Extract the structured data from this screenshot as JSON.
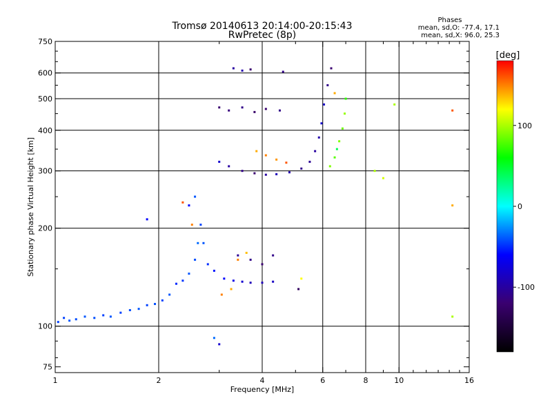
{
  "chart_data": {
    "type": "scatter",
    "title": "Tromsø 20140613 20:14:00-20:15:43",
    "subtitle": "RwPretec (8p)",
    "phases": {
      "heading": "Phases",
      "line_o": "mean, sd,O: -77.4, 17.1",
      "line_x": "mean, sd,X:  96.0, 25.3"
    },
    "xlabel": "Frequency [MHz]",
    "ylabel": "Stationary phase Virtual Height [km]",
    "xscale": "log",
    "yscale": "log",
    "xlim": [
      1,
      16
    ],
    "ylim": [
      72,
      750
    ],
    "x_ticks": [
      1,
      2,
      4,
      6,
      8,
      10,
      16
    ],
    "x_tick_labels": [
      "1",
      "2",
      "4",
      "6",
      "8",
      "10",
      "16"
    ],
    "x_minor_ticks": [
      3,
      5,
      7,
      9,
      11,
      12,
      13,
      14,
      15
    ],
    "y_ticks": [
      75,
      100,
      200,
      300,
      400,
      500,
      600,
      750
    ],
    "y_tick_labels": [
      "75",
      "100",
      "200",
      "300",
      "400",
      "500",
      "600",
      "750"
    ],
    "y_minor_ticks": [
      80,
      90,
      150,
      250,
      350,
      450,
      550,
      650,
      700
    ],
    "grid_x": [
      2,
      4,
      6,
      8,
      10
    ],
    "grid_y": [
      100,
      200,
      300,
      400,
      500,
      600
    ],
    "colorbar": {
      "label": "[deg]",
      "range": [
        -180,
        180
      ],
      "ticks": [
        100,
        0,
        -100
      ],
      "tick_labels": [
        "100",
        "0",
        "-100"
      ],
      "stops": [
        "#000000",
        "#3a0070",
        "#0000ff",
        "#00ffff",
        "#00ff00",
        "#ffff00",
        "#ff0000"
      ]
    },
    "series": [
      {
        "points": [
          [
            1.02,
            103,
            -45
          ],
          [
            1.06,
            106,
            -45
          ],
          [
            1.1,
            104,
            -40
          ],
          [
            1.15,
            105,
            -42
          ],
          [
            1.22,
            107,
            -40
          ],
          [
            1.3,
            106,
            -42
          ],
          [
            1.38,
            108,
            -45
          ],
          [
            1.45,
            107,
            -40
          ],
          [
            1.55,
            110,
            -45
          ],
          [
            1.65,
            112,
            -42
          ],
          [
            1.75,
            113,
            -40
          ],
          [
            1.85,
            116,
            -45
          ],
          [
            1.95,
            117,
            -42
          ],
          [
            2.05,
            120,
            -45
          ],
          [
            2.15,
            125,
            -40
          ],
          [
            2.25,
            135,
            -50
          ],
          [
            2.35,
            138,
            -48
          ],
          [
            2.45,
            145,
            -40
          ],
          [
            2.55,
            160,
            -42
          ],
          [
            2.6,
            180,
            -35
          ],
          [
            2.65,
            205,
            -45
          ],
          [
            2.7,
            180,
            -40
          ],
          [
            2.78,
            155,
            -50
          ],
          [
            2.9,
            148,
            -55
          ],
          [
            3.1,
            140,
            -60
          ],
          [
            3.3,
            138,
            -70
          ],
          [
            3.5,
            137,
            -80
          ],
          [
            3.7,
            136,
            -90
          ],
          [
            4.0,
            136,
            -90
          ],
          [
            4.3,
            137,
            -85
          ],
          [
            1.85,
            213,
            -60
          ],
          [
            2.55,
            250,
            -40
          ],
          [
            2.45,
            235,
            -60
          ],
          [
            2.9,
            92,
            -35
          ],
          [
            3.0,
            88,
            -80
          ]
        ]
      },
      {
        "points": [
          [
            3.0,
            320,
            -80
          ],
          [
            3.2,
            310,
            -100
          ],
          [
            3.5,
            300,
            -110
          ],
          [
            3.8,
            295,
            -120
          ],
          [
            4.1,
            292,
            -100
          ],
          [
            4.4,
            293,
            -90
          ],
          [
            4.8,
            297,
            -95
          ],
          [
            5.2,
            305,
            -110
          ],
          [
            5.5,
            320,
            -105
          ],
          [
            5.7,
            345,
            -100
          ],
          [
            5.85,
            380,
            -95
          ],
          [
            5.95,
            420,
            -80
          ],
          [
            6.05,
            480,
            -85
          ],
          [
            6.2,
            550,
            -110
          ],
          [
            6.35,
            620,
            -120
          ],
          [
            3.0,
            470,
            -120
          ],
          [
            3.2,
            460,
            -115
          ],
          [
            3.5,
            470,
            -110
          ],
          [
            3.8,
            455,
            -125
          ],
          [
            4.1,
            465,
            -120
          ],
          [
            4.5,
            460,
            -110
          ],
          [
            3.3,
            620,
            -100
          ],
          [
            3.5,
            610,
            -95
          ],
          [
            3.7,
            615,
            -120
          ],
          [
            4.6,
            605,
            -110
          ],
          [
            3.4,
            165,
            -105
          ],
          [
            3.7,
            160,
            -110
          ],
          [
            4.0,
            155,
            -120
          ],
          [
            4.3,
            165,
            -110
          ],
          [
            5.1,
            130,
            -130
          ]
        ]
      },
      {
        "points": [
          [
            3.85,
            345,
            140
          ],
          [
            4.1,
            335,
            150
          ],
          [
            4.4,
            325,
            145
          ],
          [
            4.7,
            318,
            160
          ],
          [
            3.05,
            125,
            150
          ],
          [
            3.25,
            130,
            140
          ],
          [
            3.4,
            160,
            150
          ],
          [
            3.6,
            168,
            135
          ],
          [
            5.2,
            140,
            120
          ],
          [
            6.5,
            330,
            80
          ],
          [
            6.7,
            370,
            90
          ],
          [
            6.85,
            405,
            85
          ],
          [
            6.95,
            450,
            95
          ],
          [
            7.0,
            500,
            70
          ],
          [
            6.3,
            310,
            90
          ],
          [
            6.6,
            350,
            40
          ],
          [
            2.5,
            205,
            150
          ],
          [
            2.35,
            240,
            160
          ],
          [
            8.5,
            300,
            100
          ],
          [
            9.7,
            480,
            100
          ],
          [
            9.0,
            285,
            110
          ],
          [
            14.3,
            460,
            160
          ],
          [
            14.3,
            235,
            140
          ],
          [
            14.3,
            107,
            100
          ],
          [
            6.5,
            520,
            140
          ]
        ]
      }
    ]
  }
}
